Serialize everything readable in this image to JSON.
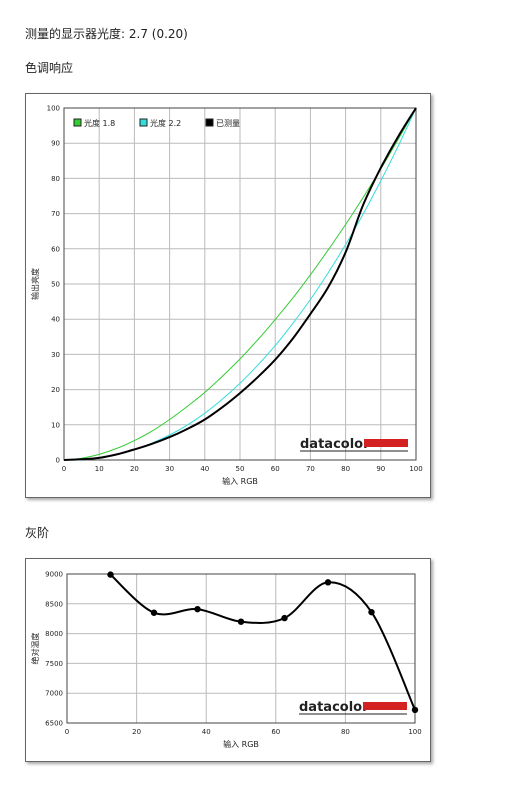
{
  "gamma_line": {
    "label": "测量的显示器光度:",
    "value": "2.7 (0.20)"
  },
  "tone_section_title": "色调响应",
  "gray_section_title": "灰阶",
  "logo_text": "datacolor",
  "colors": {
    "gamma18": "#33cc33",
    "gamma22": "#33dddd",
    "measured": "#000000",
    "logo_red": "#d42222",
    "grid": "#bbbbbb"
  },
  "chart_data": [
    {
      "type": "line",
      "title": "",
      "xlabel": "输入 RGB",
      "ylabel": "输出亮度",
      "xlim": [
        0,
        100
      ],
      "ylim": [
        0,
        100
      ],
      "x_ticks": [
        0,
        10,
        20,
        30,
        40,
        50,
        60,
        70,
        80,
        90,
        100
      ],
      "y_ticks": [
        0,
        10,
        20,
        30,
        40,
        50,
        60,
        70,
        80,
        90,
        100
      ],
      "grid": true,
      "legend_position": "top-left",
      "legend": [
        "光度 1.8",
        "光度 2.2",
        "已测量"
      ],
      "x": [
        0,
        5,
        10,
        15,
        20,
        25,
        30,
        35,
        40,
        45,
        50,
        55,
        60,
        65,
        70,
        75,
        80,
        85,
        90,
        95,
        100
      ],
      "series": [
        {
          "name": "光度 1.8",
          "values": [
            0,
            0.5,
            1.6,
            3.3,
            5.5,
            8.2,
            11.5,
            15.2,
            19.2,
            23.8,
            28.7,
            34.1,
            39.9,
            46.0,
            52.6,
            59.6,
            66.9,
            74.6,
            82.7,
            91.2,
            100
          ]
        },
        {
          "name": "光度 2.2",
          "values": [
            0,
            0.1,
            0.6,
            1.5,
            2.9,
            4.8,
            7.1,
            9.9,
            13.3,
            17.3,
            21.8,
            26.9,
            32.5,
            38.8,
            45.6,
            53.1,
            61.2,
            69.9,
            79.3,
            89.3,
            100
          ]
        },
        {
          "name": "已测量",
          "values": [
            0,
            0.2,
            0.6,
            1.6,
            3.0,
            4.6,
            6.5,
            8.8,
            11.5,
            15.0,
            19.0,
            23.5,
            28.5,
            34.5,
            41.5,
            49.0,
            59.0,
            72.5,
            83.0,
            92.0,
            100
          ]
        }
      ]
    },
    {
      "type": "line",
      "title": "",
      "xlabel": "输入 RGB",
      "ylabel": "绝对温度",
      "xlim": [
        0,
        100
      ],
      "ylim": [
        6500,
        9000
      ],
      "x_ticks": [
        0,
        20,
        40,
        60,
        80,
        100
      ],
      "y_ticks": [
        6500,
        7000,
        7500,
        8000,
        8500,
        9000
      ],
      "grid": true,
      "x": [
        12.5,
        25,
        37.5,
        50,
        62.5,
        75,
        87.5,
        100
      ],
      "series": [
        {
          "values": [
            8990,
            8350,
            8410,
            8200,
            8260,
            8860,
            8360,
            6720
          ]
        }
      ]
    }
  ]
}
